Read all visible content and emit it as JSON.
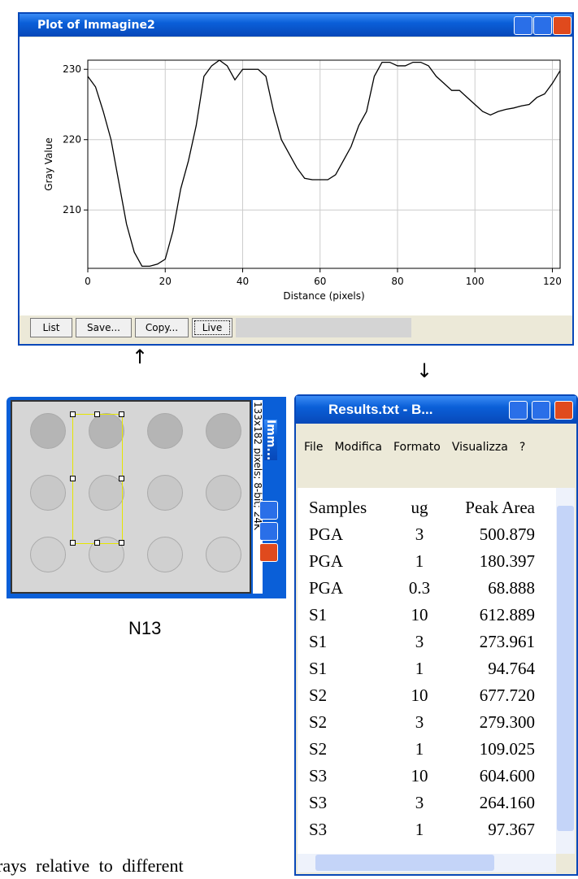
{
  "plot_window": {
    "title": "Plot of Immagine2",
    "buttons": [
      "List",
      "Save...",
      "Copy...",
      "Live"
    ]
  },
  "chart_data": {
    "type": "line",
    "x_label": "Distance (pixels)",
    "y_label": "Gray Value",
    "x": [
      0,
      2,
      4,
      6,
      8,
      10,
      12,
      14,
      16,
      18,
      20,
      22,
      24,
      26,
      28,
      30,
      32,
      34,
      36,
      38,
      40,
      42,
      44,
      46,
      48,
      50,
      52,
      54,
      56,
      58,
      60,
      62,
      64,
      66,
      68,
      70,
      72,
      74,
      76,
      78,
      80,
      82,
      84,
      86,
      88,
      90,
      92,
      94,
      96,
      98,
      100,
      102,
      104,
      106,
      108,
      110,
      112,
      114,
      116,
      118,
      120,
      122
    ],
    "values": [
      229,
      227.5,
      224,
      220,
      214,
      208,
      204,
      202,
      202,
      202.3,
      203,
      207,
      213,
      217,
      222,
      229,
      230.5,
      231.3,
      230.5,
      228.5,
      230,
      230,
      230,
      229,
      224,
      220,
      218,
      216,
      214.5,
      214.3,
      214.3,
      214.3,
      215,
      217,
      219,
      222,
      224,
      229,
      231,
      231,
      230.5,
      230.5,
      231,
      231,
      230.5,
      229,
      228,
      227,
      227,
      226,
      225,
      224,
      223.5,
      224,
      224.3,
      224.5,
      224.8,
      225,
      226,
      226.5,
      228,
      229.8
    ],
    "color": "#000000",
    "xlim": [
      0,
      122
    ],
    "ylim": [
      201.7,
      231.3
    ],
    "xticks": [
      0,
      20,
      40,
      60,
      80,
      100,
      120
    ],
    "yticks": [
      210,
      220,
      230
    ],
    "grid": true
  },
  "image_window": {
    "title": "Imm...",
    "info": "133x182 pixels; 8-bit; 24K"
  },
  "caption": "N13",
  "results_window": {
    "title": "Results.txt - B...",
    "menu": [
      "File",
      "Modifica",
      "Formato",
      "Visualizza",
      "?"
    ],
    "table": {
      "header": [
        "Samples",
        "ug",
        "Peak Area"
      ],
      "rows": [
        [
          "PGA",
          "3",
          "500.879"
        ],
        [
          "PGA",
          "1",
          "180.397"
        ],
        [
          "PGA",
          "0.3",
          "68.888"
        ],
        [
          "S1",
          "10",
          "612.889"
        ],
        [
          "S1",
          "3",
          "273.961"
        ],
        [
          "S1",
          "1",
          "94.764"
        ],
        [
          "S2",
          "10",
          "677.720"
        ],
        [
          "S2",
          "3",
          "279.300"
        ],
        [
          "S2",
          "1",
          "109.025"
        ],
        [
          "S3",
          "10",
          "604.600"
        ],
        [
          "S3",
          "3",
          "264.160"
        ],
        [
          "S3",
          "1",
          "97.367"
        ]
      ]
    }
  },
  "body_text": "rays relative to different"
}
